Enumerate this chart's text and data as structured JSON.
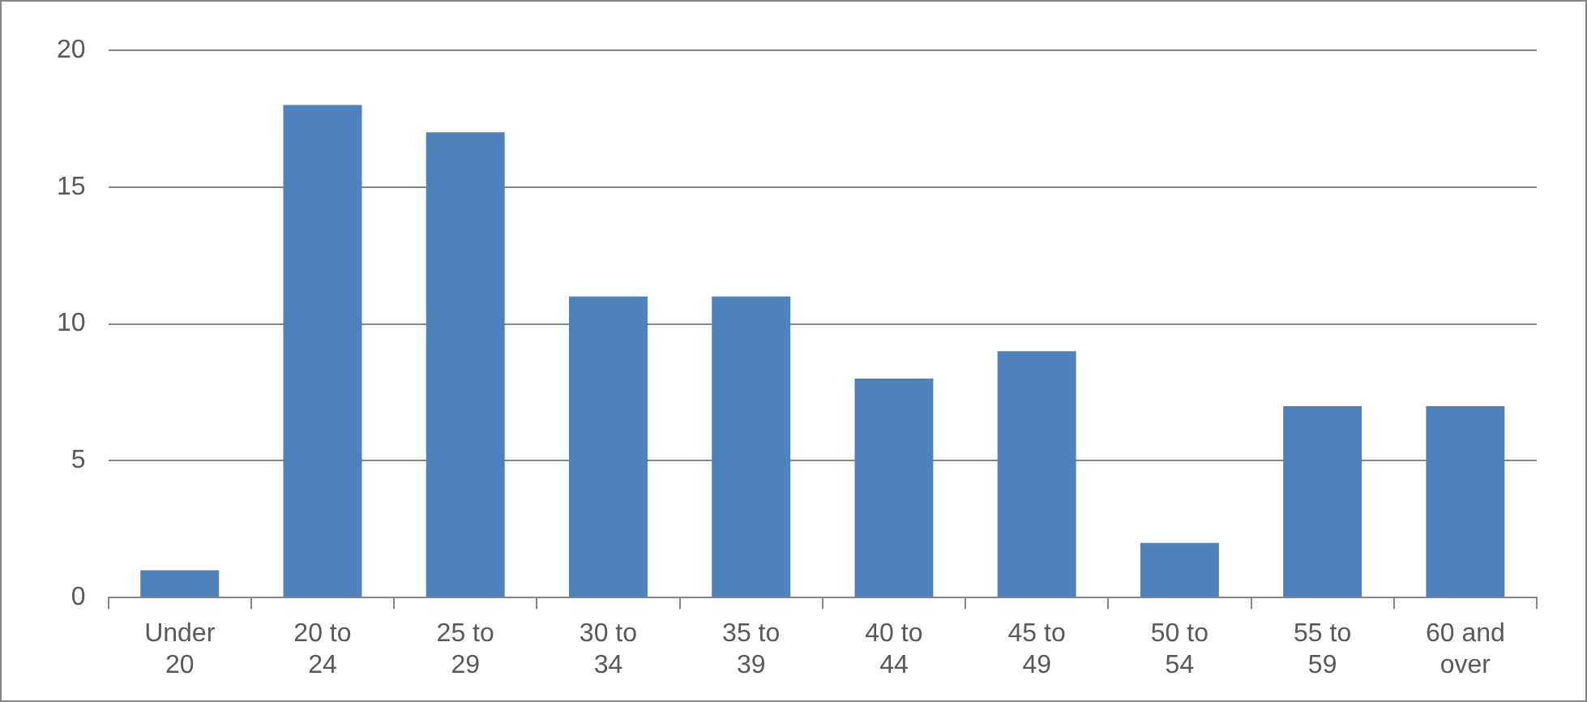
{
  "chart_data": {
    "type": "bar",
    "categories": [
      "Under 20",
      "20 to 24",
      "25 to 29",
      "30 to 34",
      "35 to 39",
      "40 to 44",
      "45 to 49",
      "50 to 54",
      "55 to 59",
      "60 and over"
    ],
    "values": [
      1,
      18,
      17,
      11,
      11,
      8,
      9,
      2,
      7,
      7
    ],
    "color": "#4f81bd",
    "ylim": [
      0,
      20
    ],
    "yticks": [
      0,
      5,
      10,
      15,
      20
    ],
    "grid": "y",
    "legend": false
  }
}
